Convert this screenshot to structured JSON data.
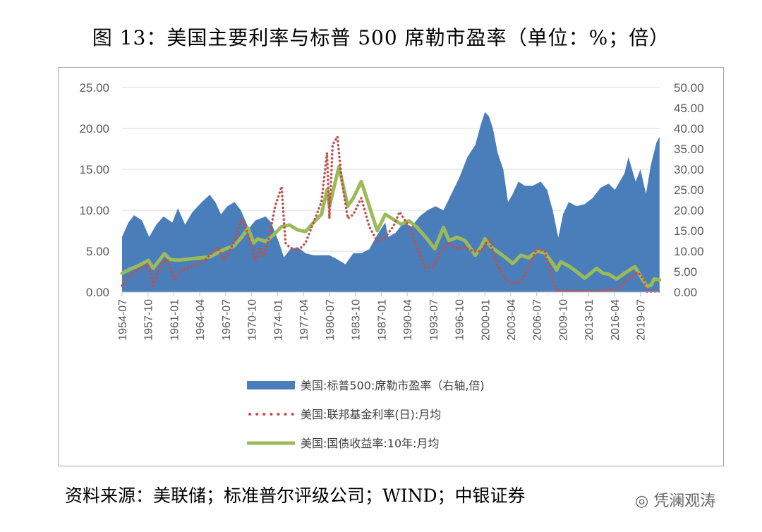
{
  "title": "图 13：美国主要利率与标普 500 席勒市盈率（单位：%；倍）",
  "source": "资料来源：美联储；标准普尔评级公司；WIND；中银证券",
  "watermark": "凭澜观涛",
  "chart_data": {
    "type": "area+line",
    "left_axis": {
      "min": 0,
      "max": 25,
      "ticks": [
        "0.00",
        "5.00",
        "10.00",
        "15.00",
        "20.00",
        "25.00"
      ]
    },
    "right_axis": {
      "min": 0,
      "max": 50,
      "ticks": [
        "0.00",
        "5.00",
        "10.00",
        "15.00",
        "20.00",
        "25.00",
        "30.00",
        "35.00",
        "40.00",
        "45.00",
        "50.00"
      ]
    },
    "x_axis": {
      "start": "1954-07",
      "end": "2021-12",
      "ticks": [
        "1954-07",
        "1957-10",
        "1961-01",
        "1964-04",
        "1967-07",
        "1970-10",
        "1974-01",
        "1977-04",
        "1980-07",
        "1983-10",
        "1987-01",
        "1990-04",
        "1993-07",
        "1996-10",
        "2000-01",
        "2003-04",
        "2006-07",
        "2009-10",
        "2013-01",
        "2016-04",
        "2019-07"
      ]
    },
    "legend_position": "bottom",
    "series": [
      {
        "name": "美国:标普500:席勒市盈率（右轴,倍)",
        "type": "area",
        "axis": "right",
        "color": "#4a7ebb",
        "points": [
          [
            1954.5,
            13.5
          ],
          [
            1955.3,
            17
          ],
          [
            1956.0,
            18.8
          ],
          [
            1957.0,
            17.5
          ],
          [
            1957.9,
            13.5
          ],
          [
            1958.8,
            16.5
          ],
          [
            1959.7,
            18.5
          ],
          [
            1960.8,
            17
          ],
          [
            1961.5,
            20.5
          ],
          [
            1962.4,
            16.5
          ],
          [
            1963.3,
            19.5
          ],
          [
            1964.5,
            22
          ],
          [
            1965.5,
            23.8
          ],
          [
            1966.2,
            22
          ],
          [
            1966.9,
            19
          ],
          [
            1967.7,
            21
          ],
          [
            1968.6,
            22
          ],
          [
            1969.4,
            20
          ],
          [
            1970.4,
            15.5
          ],
          [
            1971.2,
            17.5
          ],
          [
            1972.5,
            18.5
          ],
          [
            1973.2,
            17
          ],
          [
            1974.2,
            12
          ],
          [
            1974.8,
            8.5
          ],
          [
            1975.6,
            10.5
          ],
          [
            1976.5,
            11
          ],
          [
            1977.5,
            9.5
          ],
          [
            1978.5,
            9
          ],
          [
            1979.5,
            9
          ],
          [
            1980.5,
            9
          ],
          [
            1981.5,
            8
          ],
          [
            1982.5,
            6.8
          ],
          [
            1983.5,
            9.5
          ],
          [
            1984.5,
            9.5
          ],
          [
            1985.5,
            10.5
          ],
          [
            1986.5,
            14
          ],
          [
            1987.5,
            17
          ],
          [
            1987.9,
            13.5
          ],
          [
            1988.8,
            14.5
          ],
          [
            1989.8,
            17
          ],
          [
            1990.8,
            16
          ],
          [
            1991.8,
            18.5
          ],
          [
            1992.8,
            20
          ],
          [
            1993.8,
            21
          ],
          [
            1994.8,
            20
          ],
          [
            1995.8,
            24
          ],
          [
            1996.8,
            28
          ],
          [
            1997.8,
            33
          ],
          [
            1998.8,
            36
          ],
          [
            1999.5,
            41
          ],
          [
            2000.0,
            44
          ],
          [
            2000.5,
            43
          ],
          [
            2001.0,
            40
          ],
          [
            2001.6,
            34
          ],
          [
            2002.3,
            30
          ],
          [
            2002.9,
            22
          ],
          [
            2003.5,
            24
          ],
          [
            2004.2,
            27
          ],
          [
            2005.0,
            26
          ],
          [
            2006.0,
            26
          ],
          [
            2007.0,
            27
          ],
          [
            2007.8,
            25
          ],
          [
            2008.5,
            20
          ],
          [
            2009.2,
            13.3
          ],
          [
            2009.8,
            19
          ],
          [
            2010.5,
            22
          ],
          [
            2011.5,
            21
          ],
          [
            2012.5,
            21.5
          ],
          [
            2013.5,
            23
          ],
          [
            2014.5,
            25.5
          ],
          [
            2015.5,
            26.5
          ],
          [
            2016.3,
            25
          ],
          [
            2017.5,
            29
          ],
          [
            2018.0,
            33
          ],
          [
            2018.9,
            27
          ],
          [
            2019.5,
            30
          ],
          [
            2020.2,
            24
          ],
          [
            2020.8,
            31
          ],
          [
            2021.5,
            36.5
          ],
          [
            2021.9,
            38
          ]
        ]
      },
      {
        "name": "美国:联邦基金利率(日):月均",
        "type": "dotted-line",
        "axis": "left",
        "color": "#c0504d",
        "points": [
          [
            1954.5,
            0.8
          ],
          [
            1955.5,
            2.0
          ],
          [
            1956.5,
            2.8
          ],
          [
            1957.8,
            3.3
          ],
          [
            1958.4,
            0.8
          ],
          [
            1959.5,
            3.5
          ],
          [
            1960.2,
            4.0
          ],
          [
            1961.0,
            1.5
          ],
          [
            1962.0,
            2.7
          ],
          [
            1963.0,
            3.0
          ],
          [
            1964.0,
            3.5
          ],
          [
            1965.0,
            4.0
          ],
          [
            1966.5,
            5.5
          ],
          [
            1967.3,
            3.9
          ],
          [
            1968.5,
            6.0
          ],
          [
            1969.5,
            9.0
          ],
          [
            1970.5,
            6.5
          ],
          [
            1971.2,
            3.8
          ],
          [
            1971.8,
            5.5
          ],
          [
            1972.3,
            4.3
          ],
          [
            1973.0,
            7.0
          ],
          [
            1973.7,
            10.5
          ],
          [
            1974.5,
            12.9
          ],
          [
            1975.0,
            6.0
          ],
          [
            1975.5,
            5.5
          ],
          [
            1976.5,
            5.0
          ],
          [
            1977.5,
            6.0
          ],
          [
            1978.5,
            8.5
          ],
          [
            1979.5,
            11.0
          ],
          [
            1980.2,
            17.0
          ],
          [
            1980.5,
            9.0
          ],
          [
            1980.9,
            18.0
          ],
          [
            1981.5,
            19.0
          ],
          [
            1982.0,
            14.0
          ],
          [
            1982.8,
            9.0
          ],
          [
            1983.5,
            9.5
          ],
          [
            1984.5,
            11.5
          ],
          [
            1985.5,
            8.0
          ],
          [
            1986.5,
            6.2
          ],
          [
            1987.5,
            6.7
          ],
          [
            1988.5,
            8.0
          ],
          [
            1989.3,
            9.8
          ],
          [
            1990.5,
            8.0
          ],
          [
            1991.5,
            5.5
          ],
          [
            1992.5,
            3.0
          ],
          [
            1993.5,
            3.0
          ],
          [
            1994.5,
            5.0
          ],
          [
            1995.5,
            6.0
          ],
          [
            1996.5,
            5.3
          ],
          [
            1997.5,
            5.5
          ],
          [
            1998.5,
            5.0
          ],
          [
            1999.5,
            5.0
          ],
          [
            2000.5,
            6.5
          ],
          [
            2001.5,
            3.5
          ],
          [
            2002.5,
            1.7
          ],
          [
            2003.5,
            1.0
          ],
          [
            2004.5,
            1.3
          ],
          [
            2005.5,
            3.0
          ],
          [
            2006.5,
            5.3
          ],
          [
            2007.5,
            5.0
          ],
          [
            2008.3,
            2.0
          ],
          [
            2009.0,
            0.15
          ],
          [
            2010.0,
            0.15
          ],
          [
            2012.0,
            0.15
          ],
          [
            2014.0,
            0.1
          ],
          [
            2015.9,
            0.3
          ],
          [
            2016.8,
            0.5
          ],
          [
            2017.5,
            1.2
          ],
          [
            2018.5,
            2.0
          ],
          [
            2019.2,
            2.4
          ],
          [
            2019.9,
            1.6
          ],
          [
            2020.3,
            0.05
          ],
          [
            2021.9,
            0.08
          ]
        ]
      },
      {
        "name": "美国:国债收益率:10年:月均",
        "type": "line",
        "axis": "left",
        "color": "#9bbb59",
        "points": [
          [
            1954.5,
            2.3
          ],
          [
            1955.5,
            2.8
          ],
          [
            1956.5,
            3.2
          ],
          [
            1957.8,
            3.9
          ],
          [
            1958.4,
            2.9
          ],
          [
            1959.8,
            4.7
          ],
          [
            1960.5,
            4.0
          ],
          [
            1961.5,
            3.9
          ],
          [
            1962.5,
            4.0
          ],
          [
            1963.5,
            4.1
          ],
          [
            1964.5,
            4.2
          ],
          [
            1965.5,
            4.3
          ],
          [
            1966.5,
            4.8
          ],
          [
            1967.5,
            5.3
          ],
          [
            1968.5,
            5.6
          ],
          [
            1969.5,
            6.7
          ],
          [
            1970.3,
            7.8
          ],
          [
            1971.0,
            6.0
          ],
          [
            1971.5,
            6.5
          ],
          [
            1972.5,
            6.2
          ],
          [
            1973.5,
            7.0
          ],
          [
            1974.5,
            8.0
          ],
          [
            1975.5,
            8.2
          ],
          [
            1976.5,
            7.6
          ],
          [
            1977.5,
            7.4
          ],
          [
            1978.5,
            8.5
          ],
          [
            1979.5,
            9.5
          ],
          [
            1980.2,
            12.5
          ],
          [
            1980.5,
            10.5
          ],
          [
            1981.0,
            12.5
          ],
          [
            1981.7,
            15.3
          ],
          [
            1982.0,
            14.0
          ],
          [
            1982.8,
            10.5
          ],
          [
            1983.5,
            11.5
          ],
          [
            1984.5,
            13.5
          ],
          [
            1985.5,
            10.5
          ],
          [
            1986.5,
            7.5
          ],
          [
            1987.5,
            9.5
          ],
          [
            1988.5,
            8.9
          ],
          [
            1989.5,
            8.3
          ],
          [
            1990.5,
            8.7
          ],
          [
            1991.5,
            7.9
          ],
          [
            1992.5,
            6.8
          ],
          [
            1993.7,
            5.3
          ],
          [
            1994.8,
            7.9
          ],
          [
            1995.5,
            6.3
          ],
          [
            1996.5,
            6.7
          ],
          [
            1997.5,
            6.3
          ],
          [
            1998.8,
            4.5
          ],
          [
            1999.5,
            5.5
          ],
          [
            2000.0,
            6.5
          ],
          [
            2000.8,
            5.5
          ],
          [
            2001.5,
            5.0
          ],
          [
            2002.5,
            4.3
          ],
          [
            2003.5,
            3.5
          ],
          [
            2004.5,
            4.5
          ],
          [
            2005.5,
            4.2
          ],
          [
            2006.5,
            5.0
          ],
          [
            2007.5,
            4.8
          ],
          [
            2008.5,
            3.5
          ],
          [
            2009.0,
            2.7
          ],
          [
            2009.5,
            3.7
          ],
          [
            2010.5,
            3.2
          ],
          [
            2011.5,
            2.5
          ],
          [
            2012.5,
            1.7
          ],
          [
            2013.5,
            2.5
          ],
          [
            2014.0,
            2.9
          ],
          [
            2014.8,
            2.3
          ],
          [
            2015.5,
            2.2
          ],
          [
            2016.5,
            1.6
          ],
          [
            2017.5,
            2.3
          ],
          [
            2018.8,
            3.1
          ],
          [
            2019.5,
            2.0
          ],
          [
            2020.3,
            0.7
          ],
          [
            2020.9,
            0.9
          ],
          [
            2021.2,
            1.6
          ],
          [
            2021.9,
            1.5
          ]
        ]
      }
    ]
  }
}
